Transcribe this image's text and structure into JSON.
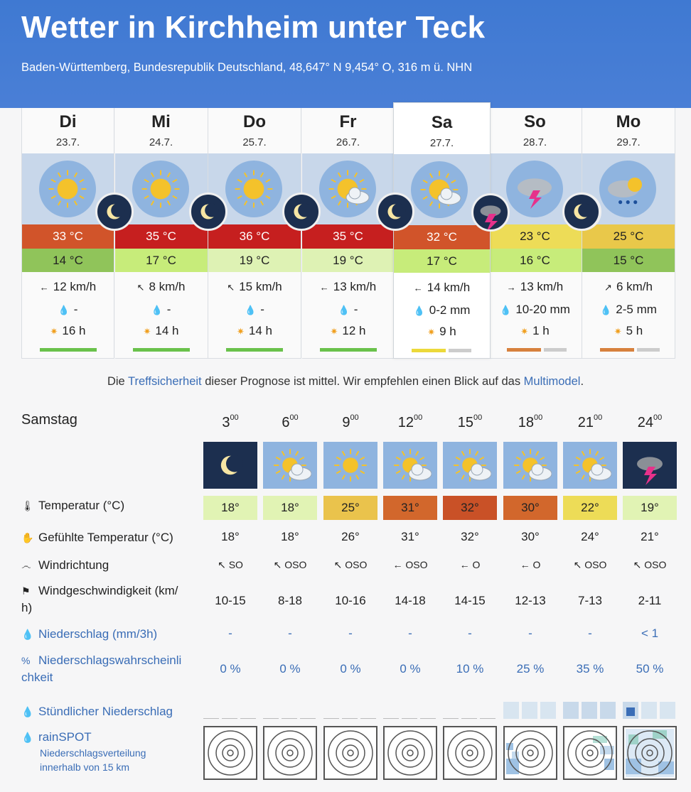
{
  "header": {
    "title": "Wetter in Kirchheim unter Teck",
    "subtitle": "Baden-Württemberg, Bundesrepublik Deutschland, 48,647° N 9,454° O, 316 m ü. NHN"
  },
  "days": [
    {
      "name": "Di",
      "date": "23.7.",
      "tmax": "33 °C",
      "tmin": "14 °C",
      "tmax_color": "#d1542a",
      "tmin_color": "#90c45a",
      "wind": "12 km/h",
      "wind_arrow": "←",
      "rain": "-",
      "sun": "16 h",
      "icon": "sun-icon",
      "night_icon": "moon-icon",
      "accuracy_level": "high"
    },
    {
      "name": "Mi",
      "date": "24.7.",
      "tmax": "35 °C",
      "tmin": "17 °C",
      "tmax_color": "#c61f1f",
      "tmin_color": "#c7ec7a",
      "wind": "8 km/h",
      "wind_arrow": "↖",
      "rain": "-",
      "sun": "14 h",
      "icon": "sun-icon",
      "night_icon": "moon-icon",
      "accuracy_level": "high"
    },
    {
      "name": "Do",
      "date": "25.7.",
      "tmax": "36 °C",
      "tmin": "19 °C",
      "tmax_color": "#c61f1f",
      "tmin_color": "#def2b4",
      "wind": "15 km/h",
      "wind_arrow": "↖",
      "rain": "-",
      "sun": "14 h",
      "icon": "sun-icon",
      "night_icon": "moon-icon",
      "accuracy_level": "high"
    },
    {
      "name": "Fr",
      "date": "26.7.",
      "tmax": "35 °C",
      "tmin": "19 °C",
      "tmax_color": "#c61f1f",
      "tmin_color": "#def2b4",
      "wind": "13 km/h",
      "wind_arrow": "←",
      "rain": "-",
      "sun": "12 h",
      "icon": "sun-cloud-icon",
      "night_icon": "moon-cloud-icon",
      "accuracy_level": "high"
    },
    {
      "name": "Sa",
      "date": "27.7.",
      "tmax": "32 °C",
      "tmin": "17 °C",
      "tmax_color": "#d1542a",
      "tmin_color": "#c7ec7a",
      "wind": "14 km/h",
      "wind_arrow": "←",
      "rain": "0-2 mm",
      "sun": "9 h",
      "icon": "sun-cloud-icon",
      "night_icon": "thunder-night-icon",
      "accuracy_level": "medium"
    },
    {
      "name": "So",
      "date": "28.7.",
      "tmax": "23 °C",
      "tmin": "16 °C",
      "tmax_color": "#eddc57",
      "tmin_color": "#c7ec7a",
      "wind": "13 km/h",
      "wind_arrow": "→",
      "rain": "10-20 mm",
      "sun": "1 h",
      "icon": "thunderstorm-icon",
      "night_icon": "rain-night-icon",
      "accuracy_level": "low"
    },
    {
      "name": "Mo",
      "date": "29.7.",
      "tmax": "25 °C",
      "tmin": "15 °C",
      "tmax_color": "#e9c84a",
      "tmin_color": "#90c45a",
      "wind": "6 km/h",
      "wind_arrow": "↗",
      "rain": "2-5 mm",
      "sun": "5 h",
      "icon": "rain-cloud-icon",
      "night_icon": "rain-night-icon",
      "accuracy_level": "low"
    }
  ],
  "accuracy": {
    "before": "Die ",
    "link1": "Treffsicherheit",
    "middle": " dieser Prognose ist mittel. Wir empfehlen einen Blick auf das ",
    "link2": "Multimodel",
    "after": "."
  },
  "hourly": {
    "day_label": "Samstag",
    "times": [
      {
        "hour": "3",
        "min": "00",
        "icon": "moon-icon"
      },
      {
        "hour": "6",
        "min": "00",
        "icon": "sun-cloud-icon"
      },
      {
        "hour": "9",
        "min": "00",
        "icon": "sun-wind-icon"
      },
      {
        "hour": "12",
        "min": "00",
        "icon": "sun-cloud-wind-icon"
      },
      {
        "hour": "15",
        "min": "00",
        "icon": "sun-cloud-wind-icon"
      },
      {
        "hour": "18",
        "min": "00",
        "icon": "cloud-wind-icon"
      },
      {
        "hour": "21",
        "min": "00",
        "icon": "cloud-wind-icon"
      },
      {
        "hour": "24",
        "min": "00",
        "icon": "thunder-night-icon"
      }
    ],
    "labels": {
      "temp": "Temperatur (°C)",
      "feels": "Gefühlte Temperatur (°C)",
      "winddir": "Windrichtung",
      "windspeed_1": "Windgeschwindigkeit (km/",
      "windspeed_2": "h)",
      "precip": "Niederschlag (mm/3h)",
      "prob_1": "Niederschlagswahrscheinli",
      "prob_2": "chkeit",
      "hourly_precip": "Stündlicher Niederschlag",
      "rainspot": "rainSPOT",
      "rainspot_sub_1": "Niederschlagsverteilung",
      "rainspot_sub_2": "innerhalb von 15 km"
    },
    "temps": [
      "18°",
      "18°",
      "25°",
      "31°",
      "32°",
      "30°",
      "22°",
      "19°"
    ],
    "temp_colors": [
      "#e1f3b4",
      "#e1f3b4",
      "#eac34c",
      "#d2672c",
      "#c95127",
      "#d2672c",
      "#eddc57",
      "#e1f3b4"
    ],
    "feels": [
      "18°",
      "18°",
      "26°",
      "31°",
      "32°",
      "30°",
      "24°",
      "21°"
    ],
    "winddir": [
      "SO",
      "OSO",
      "OSO",
      "OSO",
      "O",
      "O",
      "OSO",
      "OSO"
    ],
    "windarrow": [
      "↖",
      "↖",
      "↖",
      "←",
      "←",
      "←",
      "↖",
      "↖"
    ],
    "windspeed": [
      "10-15",
      "8-18",
      "10-16",
      "14-18",
      "14-15",
      "12-13",
      "7-13",
      "2-11"
    ],
    "precip": [
      "-",
      "-",
      "-",
      "-",
      "-",
      "-",
      "-",
      "< 1"
    ],
    "prob": [
      "0 %",
      "0 %",
      "0 %",
      "0 %",
      "10 %",
      "25 %",
      "35 %",
      "50 %"
    ]
  }
}
